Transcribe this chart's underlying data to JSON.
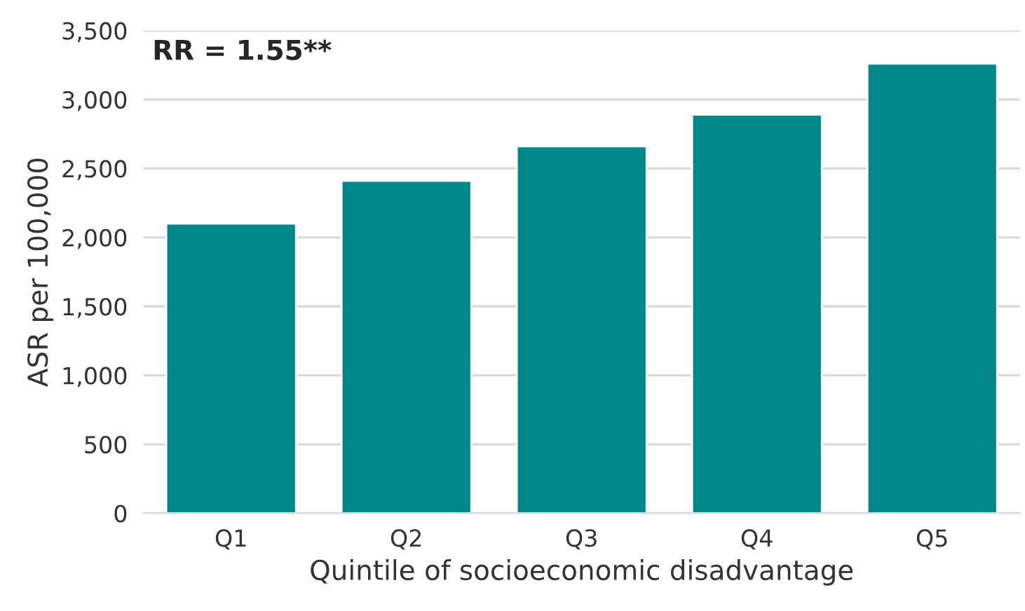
{
  "chart_data": {
    "type": "bar",
    "xlabel": "Quintile of socioeconomic disadvantage",
    "ylabel": "ASR per 100,000",
    "categories": [
      "Q1",
      "Q2",
      "Q3",
      "Q4",
      "Q5"
    ],
    "values": [
      2100,
      2410,
      2660,
      2890,
      3260
    ],
    "color": "#00878a",
    "ylim": [
      0,
      3500
    ],
    "yticks": [
      0,
      {
        "value": 500,
        "label": "500"
      },
      {
        "value": 1000,
        "label": "1,000"
      },
      {
        "value": 1500,
        "label": "1,500"
      },
      {
        "value": 2000,
        "label": "2,000"
      },
      {
        "value": 2500,
        "label": "2,500"
      },
      {
        "value": 3000,
        "label": "3,000"
      },
      {
        "value": 3500,
        "label": "3,500"
      }
    ],
    "grid": "y",
    "annotations": [
      "RR = 1.55**"
    ]
  }
}
